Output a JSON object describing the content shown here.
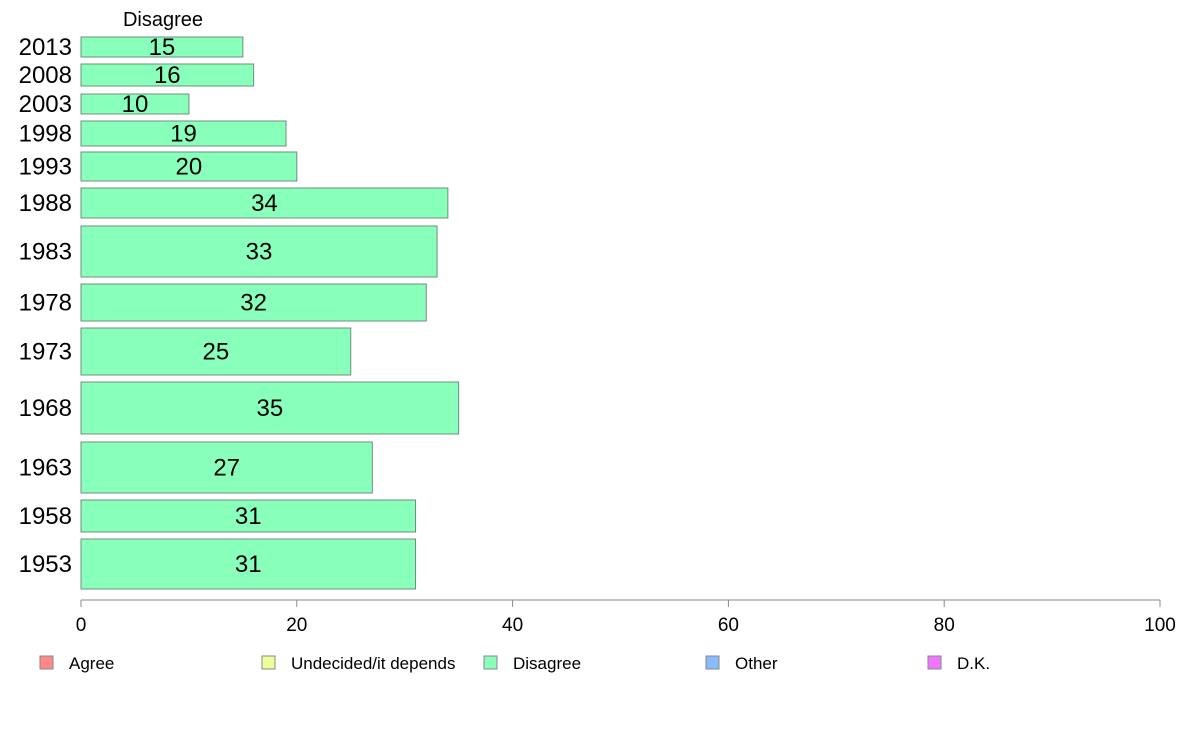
{
  "chart_data": {
    "type": "bar",
    "orientation": "horizontal",
    "panel_title": "Disagree",
    "categories": [
      "2013",
      "2008",
      "2003",
      "1998",
      "1993",
      "1988",
      "1983",
      "1978",
      "1973",
      "1968",
      "1963",
      "1958",
      "1953"
    ],
    "series": [
      {
        "name": "Disagree",
        "color": "#88ffbb",
        "values": [
          15,
          16,
          10,
          19,
          20,
          34,
          33,
          32,
          25,
          35,
          27,
          31,
          31
        ],
        "labels": [
          "15",
          "16",
          "10",
          "19",
          "20",
          "34",
          "33",
          "32",
          "25",
          "35",
          "27",
          "31",
          "31"
        ]
      }
    ],
    "xlim": [
      0,
      100
    ],
    "xticks": [
      0,
      20,
      40,
      60,
      80,
      100
    ],
    "xtick_labels": [
      "0",
      "20",
      "40",
      "60",
      "80",
      "100"
    ],
    "grid": false,
    "legend": {
      "placement": "bottom",
      "items": [
        {
          "label": "Agree",
          "color": "#ff8888"
        },
        {
          "label": "Undecided/it depends",
          "color": "#eeff99"
        },
        {
          "label": "Disagree",
          "color": "#88ffbb"
        },
        {
          "label": "Other",
          "color": "#88bbff"
        },
        {
          "label": "D.K.",
          "color": "#ee77ff"
        }
      ]
    }
  }
}
